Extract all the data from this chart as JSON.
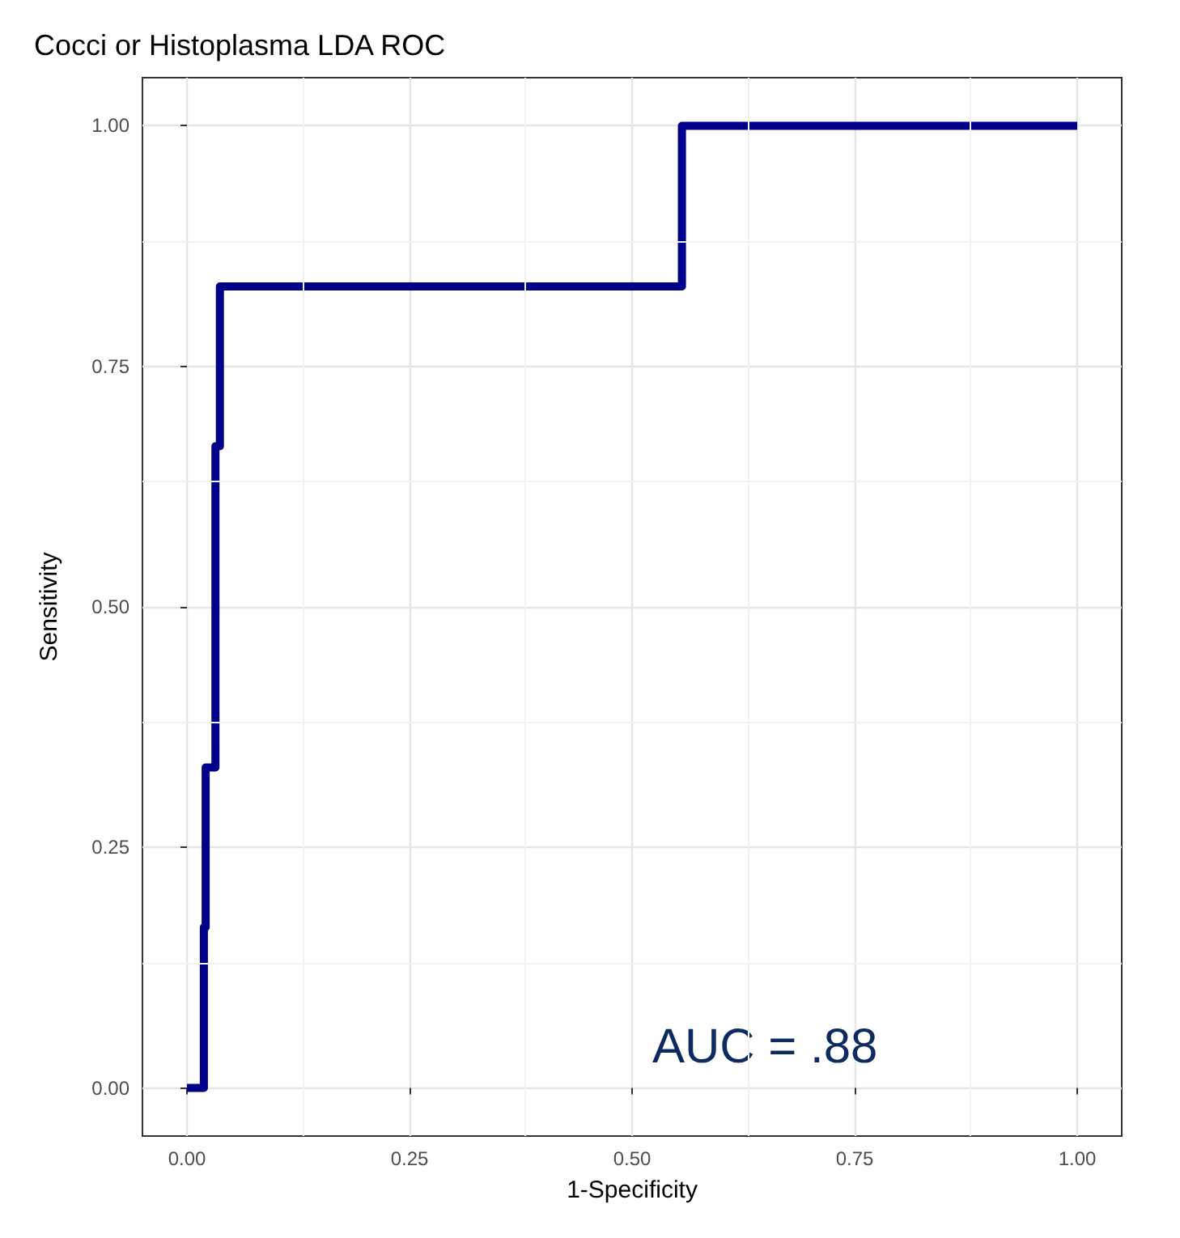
{
  "chart_data": {
    "type": "step",
    "title": "Cocci or Histoplasma LDA ROC",
    "xlabel": "1-Specificity",
    "ylabel": "Sensitivity",
    "x": [
      0,
      0.019,
      0.021,
      0.032,
      0.037,
      0.556,
      1
    ],
    "series": [
      {
        "color": "#00008b",
        "values": [
          0,
          0.167,
          0.333,
          0.667,
          0.833,
          1,
          1
        ]
      }
    ],
    "xlim": [
      -0.05,
      1.05
    ],
    "ylim": [
      -0.05,
      1.05
    ],
    "xticks": [
      {
        "value": 0,
        "label": "0.00"
      },
      {
        "value": 0.25,
        "label": "0.25"
      },
      {
        "value": 0.5,
        "label": "0.50"
      },
      {
        "value": 0.75,
        "label": "0.75"
      },
      {
        "value": 1,
        "label": "1.00"
      }
    ],
    "yticks": [
      {
        "value": 0,
        "label": "0.00"
      },
      {
        "value": 0.25,
        "label": "0.25"
      },
      {
        "value": 0.5,
        "label": "0.50"
      },
      {
        "value": 0.75,
        "label": "0.75"
      },
      {
        "value": 1,
        "label": "1.00"
      }
    ],
    "grid": true,
    "marker": "none",
    "line_style": "solid",
    "annotations": [
      "AUC = .88"
    ]
  }
}
